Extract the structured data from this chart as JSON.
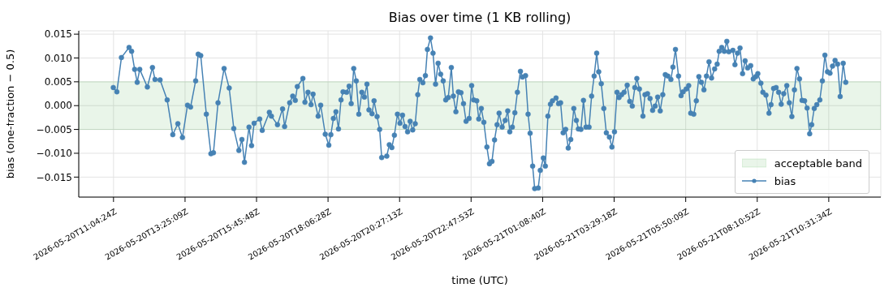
{
  "chart_data": {
    "type": "line",
    "title": "Bias over time (1 KB rolling)",
    "xlabel": "time (UTC)",
    "ylabel": "bias (one-fraction − 0.5)",
    "x": [
      "2026-05-20T11:04",
      "2026-05-20T11:11",
      "2026-05-20T11:20",
      "2026-05-20T11:35",
      "2026-05-20T11:40",
      "2026-05-20T11:46",
      "2026-05-20T11:51",
      "2026-05-20T11:56",
      "2026-05-20T12:11",
      "2026-05-20T12:21",
      "2026-05-20T12:26",
      "2026-05-20T12:36",
      "2026-05-20T12:50",
      "2026-05-20T13:01",
      "2026-05-20T13:11",
      "2026-05-20T13:20",
      "2026-05-20T13:30",
      "2026-05-20T13:36",
      "2026-05-20T13:46",
      "2026-05-20T13:51",
      "2026-05-20T13:56",
      "2026-05-20T14:07",
      "2026-05-20T14:16",
      "2026-05-20T14:21",
      "2026-05-20T14:30",
      "2026-05-20T14:42",
      "2026-05-20T14:52",
      "2026-05-20T15:01",
      "2026-05-20T15:11",
      "2026-05-20T15:17",
      "2026-05-20T15:22",
      "2026-05-20T15:31",
      "2026-05-20T15:36",
      "2026-05-20T15:41",
      "2026-05-20T15:52",
      "2026-05-20T15:57",
      "2026-05-20T16:11",
      "2026-05-20T16:15",
      "2026-05-20T16:27",
      "2026-05-20T16:37",
      "2026-05-20T16:41",
      "2026-05-20T16:51",
      "2026-05-20T16:57",
      "2026-05-20T17:02",
      "2026-05-20T17:06",
      "2026-05-20T17:17",
      "2026-05-20T17:21",
      "2026-05-20T17:27",
      "2026-05-20T17:33",
      "2026-05-20T17:37",
      "2026-05-20T17:47",
      "2026-05-20T17:52",
      "2026-05-20T18:01",
      "2026-05-20T18:08",
      "2026-05-20T18:12",
      "2026-05-20T18:17",
      "2026-05-20T18:22",
      "2026-05-20T18:27",
      "2026-05-20T18:32",
      "2026-05-20T18:36",
      "2026-05-20T18:43",
      "2026-05-20T18:48",
      "2026-05-20T18:52",
      "2026-05-20T18:57",
      "2026-05-20T19:02",
      "2026-05-20T19:07",
      "2026-05-20T19:13",
      "2026-05-20T19:18",
      "2026-05-20T19:23",
      "2026-05-20T19:27",
      "2026-05-20T19:33",
      "2026-05-20T19:37",
      "2026-05-20T19:43",
      "2026-05-20T19:48",
      "2026-05-20T19:52",
      "2026-05-20T20:02",
      "2026-05-20T20:07",
      "2026-05-20T20:12",
      "2026-05-20T20:17",
      "2026-05-20T20:23",
      "2026-05-20T20:28",
      "2026-05-20T20:33",
      "2026-05-20T20:38",
      "2026-05-20T20:43",
      "2026-05-20T20:48",
      "2026-05-20T20:53",
      "2026-05-20T20:58",
      "2026-05-20T21:03",
      "2026-05-20T21:07",
      "2026-05-20T21:13",
      "2026-05-20T21:18",
      "2026-05-20T21:22",
      "2026-05-20T21:28",
      "2026-05-20T21:33",
      "2026-05-20T21:38",
      "2026-05-20T21:43",
      "2026-05-20T21:48",
      "2026-05-20T21:53",
      "2026-05-20T21:58",
      "2026-05-20T22:03",
      "2026-05-20T22:09",
      "2026-05-20T22:13",
      "2026-05-20T22:18",
      "2026-05-20T22:23",
      "2026-05-20T22:28",
      "2026-05-20T22:33",
      "2026-05-20T22:38",
      "2026-05-20T22:44",
      "2026-05-20T22:49",
      "2026-05-20T22:53",
      "2026-05-20T22:59",
      "2026-05-20T23:03",
      "2026-05-20T23:08",
      "2026-05-20T23:13",
      "2026-05-20T23:19",
      "2026-05-20T23:24",
      "2026-05-20T23:29",
      "2026-05-20T23:34",
      "2026-05-20T23:39",
      "2026-05-20T23:43",
      "2026-05-20T23:49",
      "2026-05-20T23:55",
      "2026-05-21T00:00",
      "2026-05-21T00:04",
      "2026-05-21T00:09",
      "2026-05-21T00:14",
      "2026-05-21T00:19",
      "2026-05-21T00:25",
      "2026-05-21T00:29",
      "2026-05-21T00:35",
      "2026-05-21T00:40",
      "2026-05-21T00:44",
      "2026-05-21T00:49",
      "2026-05-21T00:53",
      "2026-05-21T01:00",
      "2026-05-21T01:04",
      "2026-05-21T01:10",
      "2026-05-21T01:14",
      "2026-05-21T01:19",
      "2026-05-21T01:24",
      "2026-05-21T01:28",
      "2026-05-21T01:35",
      "2026-05-21T01:40",
      "2026-05-21T01:44",
      "2026-05-21T01:49",
      "2026-05-21T01:54",
      "2026-05-21T01:59",
      "2026-05-21T02:04",
      "2026-05-21T02:10",
      "2026-05-21T02:15",
      "2026-05-21T02:19",
      "2026-05-21T02:24",
      "2026-05-21T02:29",
      "2026-05-21T02:34",
      "2026-05-21T02:40",
      "2026-05-21T02:45",
      "2026-05-21T02:50",
      "2026-05-21T02:55",
      "2026-05-21T02:59",
      "2026-05-21T03:04",
      "2026-05-21T03:09",
      "2026-05-21T03:14",
      "2026-05-21T03:20",
      "2026-05-21T03:25",
      "2026-05-21T03:30",
      "2026-05-21T03:35",
      "2026-05-21T03:39",
      "2026-05-21T03:44",
      "2026-05-21T03:49",
      "2026-05-21T03:55",
      "2026-05-21T04:00",
      "2026-05-21T04:05",
      "2026-05-21T04:10",
      "2026-05-21T04:14",
      "2026-05-21T04:19",
      "2026-05-21T04:26",
      "2026-05-21T04:30",
      "2026-05-21T04:35",
      "2026-05-21T04:40",
      "2026-05-21T04:45",
      "2026-05-21T04:50",
      "2026-05-21T04:55",
      "2026-05-21T05:00",
      "2026-05-21T05:05",
      "2026-05-21T05:10",
      "2026-05-21T05:15",
      "2026-05-21T05:21",
      "2026-05-21T05:25",
      "2026-05-21T05:30",
      "2026-05-21T05:36",
      "2026-05-21T05:41",
      "2026-05-21T05:45",
      "2026-05-21T05:51",
      "2026-05-21T05:56",
      "2026-05-21T06:00",
      "2026-05-21T06:06",
      "2026-05-21T06:11",
      "2026-05-21T06:16",
      "2026-05-21T06:21",
      "2026-05-21T06:26",
      "2026-05-21T06:31",
      "2026-05-21T06:36",
      "2026-05-21T06:41",
      "2026-05-21T06:47",
      "2026-05-21T06:52",
      "2026-05-21T06:56",
      "2026-05-21T07:01",
      "2026-05-21T07:06",
      "2026-05-21T07:11",
      "2026-05-21T07:15",
      "2026-05-21T07:23",
      "2026-05-21T07:27",
      "2026-05-21T07:32",
      "2026-05-21T07:37",
      "2026-05-21T07:42",
      "2026-05-21T07:47",
      "2026-05-21T07:52",
      "2026-05-21T07:58",
      "2026-05-21T08:03",
      "2026-05-21T08:08",
      "2026-05-21T08:12",
      "2026-05-21T08:18",
      "2026-05-21T08:22",
      "2026-05-21T08:28",
      "2026-05-21T08:34",
      "2026-05-21T08:38",
      "2026-05-21T08:43",
      "2026-05-21T08:48",
      "2026-05-21T08:53",
      "2026-05-21T08:58",
      "2026-05-21T09:03",
      "2026-05-21T09:09",
      "2026-05-21T09:14",
      "2026-05-21T09:19",
      "2026-05-21T09:24",
      "2026-05-21T09:29",
      "2026-05-21T09:34",
      "2026-05-21T09:39",
      "2026-05-21T09:44",
      "2026-05-21T09:49",
      "2026-05-21T09:54",
      "2026-05-21T09:58",
      "2026-05-21T10:03",
      "2026-05-21T10:08",
      "2026-05-21T10:14",
      "2026-05-21T10:19",
      "2026-05-21T10:24",
      "2026-05-21T10:29",
      "2026-05-21T10:34",
      "2026-05-21T10:39",
      "2026-05-21T10:44",
      "2026-05-21T10:49",
      "2026-05-21T10:54",
      "2026-05-21T11:00",
      "2026-05-21T11:05"
    ],
    "series": [
      {
        "name": "bias",
        "color": "#4682b4",
        "values": [
          0.0038,
          0.0029,
          0.0101,
          0.0122,
          0.0114,
          0.0076,
          0.0049,
          0.0076,
          0.0039,
          0.008,
          0.0055,
          0.0054,
          0.0012,
          -0.0061,
          -0.0038,
          -0.0067,
          0.0001,
          -0.0003,
          0.0052,
          0.0108,
          0.0105,
          -0.0018,
          -0.0101,
          -0.0099,
          0.0006,
          0.0078,
          0.0037,
          -0.0048,
          -0.0094,
          -0.0071,
          -0.0119,
          -0.0045,
          -0.0084,
          -0.0037,
          -0.0028,
          -0.0052,
          -0.0014,
          -0.0022,
          -0.004,
          -0.0007,
          -0.0044,
          0.0006,
          0.002,
          0.0011,
          0.004,
          0.0057,
          0.0007,
          0.0028,
          0.0002,
          0.0024,
          -0.0022,
          0.0001,
          -0.006,
          -0.0083,
          -0.0061,
          -0.0027,
          -0.0013,
          -0.0049,
          0.0012,
          0.0029,
          0.0028,
          0.0041,
          0.0004,
          0.0078,
          0.0052,
          -0.0018,
          0.0028,
          0.0018,
          0.0045,
          -0.0009,
          -0.0017,
          0.001,
          -0.0023,
          -0.005,
          -0.0109,
          -0.0106,
          -0.0082,
          -0.0088,
          -0.0062,
          -0.0018,
          -0.0037,
          -0.002,
          -0.0044,
          -0.0055,
          -0.0033,
          -0.0051,
          -0.0038,
          0.0023,
          0.0055,
          0.0048,
          0.0063,
          0.0118,
          0.0142,
          0.011,
          0.0045,
          0.0089,
          0.0066,
          0.0052,
          0.0012,
          0.0017,
          0.008,
          0.002,
          -0.0013,
          0.0029,
          0.0027,
          0.0004,
          -0.0033,
          -0.0027,
          0.0042,
          0.0012,
          0.001,
          -0.0028,
          -0.0006,
          -0.0035,
          -0.0087,
          -0.0122,
          -0.0117,
          -0.0072,
          -0.004,
          -0.0016,
          -0.0045,
          -0.0031,
          -0.0011,
          -0.0055,
          -0.0045,
          -0.0015,
          0.0028,
          0.0072,
          0.006,
          0.0063,
          -0.0018,
          -0.0058,
          -0.0127,
          -0.0174,
          -0.0173,
          -0.0136,
          -0.011,
          -0.0127,
          -0.0022,
          0.0003,
          0.001,
          0.0016,
          0.0004,
          0.0006,
          -0.0057,
          -0.005,
          -0.0089,
          -0.0071,
          -0.0006,
          -0.0031,
          -0.0049,
          -0.005,
          0.0011,
          -0.0045,
          -0.0045,
          0.002,
          0.0062,
          0.011,
          0.0071,
          0.0046,
          -0.0006,
          -0.0057,
          -0.0066,
          -0.0087,
          -0.0055,
          0.0028,
          0.0017,
          0.0023,
          0.0028,
          0.0043,
          0.0009,
          -0.0001,
          0.0038,
          0.0057,
          0.0035,
          -0.0022,
          0.0023,
          0.0025,
          0.0015,
          -0.001,
          -0.0001,
          0.0018,
          -0.0011,
          0.0023,
          0.0065,
          0.0062,
          0.0055,
          0.0081,
          0.0118,
          0.0062,
          0.0021,
          0.0029,
          0.0035,
          0.0042,
          -0.0016,
          -0.0018,
          0.001,
          0.0061,
          0.0049,
          0.0033,
          0.0062,
          0.0092,
          0.0058,
          0.0077,
          0.0087,
          0.0114,
          0.0122,
          0.0114,
          0.0135,
          0.0113,
          0.0116,
          0.0086,
          0.011,
          0.0121,
          0.0067,
          0.0094,
          0.0079,
          0.0084,
          0.0056,
          0.0061,
          0.0067,
          0.0047,
          0.0028,
          0.0022,
          -0.0016,
          0.0002,
          0.0036,
          0.0038,
          0.0028,
          0.0003,
          0.0025,
          0.0042,
          0.0006,
          -0.0023,
          0.0033,
          0.0078,
          0.0056,
          0.0011,
          0.001,
          -0.0005,
          -0.0059,
          -0.004,
          -0.0006,
          0.0002,
          0.0012,
          0.0052,
          0.0106,
          0.0071,
          0.0068,
          0.0083,
          0.0095,
          0.0087,
          0.0019,
          0.0089,
          0.0049
        ]
      }
    ],
    "xlim": [
      "2026-05-20T09:56",
      "2026-05-21T12:14"
    ],
    "xticks": [
      {
        "value": "2026-05-20T11:04:24",
        "label": "2026-05-20T11:04:24Z"
      },
      {
        "value": "2026-05-20T13:25:09",
        "label": "2026-05-20T13:25:09Z"
      },
      {
        "value": "2026-05-20T15:45:48",
        "label": "2026-05-20T15:45:48Z"
      },
      {
        "value": "2026-05-20T18:06:28",
        "label": "2026-05-20T18:06:28Z"
      },
      {
        "value": "2026-05-20T20:27:13",
        "label": "2026-05-20T20:27:13Z"
      },
      {
        "value": "2026-05-20T22:47:53",
        "label": "2026-05-20T22:47:53Z"
      },
      {
        "value": "2026-05-21T01:08:40",
        "label": "2026-05-21T01:08:40Z"
      },
      {
        "value": "2026-05-21T03:29:18",
        "label": "2026-05-21T03:29:18Z"
      },
      {
        "value": "2026-05-21T05:50:09",
        "label": "2026-05-21T05:50:09Z"
      },
      {
        "value": "2026-05-21T08:10:52",
        "label": "2026-05-21T08:10:52Z"
      },
      {
        "value": "2026-05-21T10:31:34",
        "label": "2026-05-21T10:31:34Z"
      }
    ],
    "ylim": [
      -0.0192,
      0.0157
    ],
    "yticks": [
      {
        "value": -0.015,
        "label": "−0.015"
      },
      {
        "value": -0.01,
        "label": "−0.010"
      },
      {
        "value": -0.005,
        "label": "−0.005"
      },
      {
        "value": 0,
        "label": "0.000"
      },
      {
        "value": 0.005,
        "label": "0.005"
      },
      {
        "value": 0.01,
        "label": "0.010"
      },
      0.015
    ],
    "bands": [
      {
        "axis": "y",
        "from": -0.005,
        "to": 0.005,
        "label": "acceptable band",
        "color": "#2ca02c"
      }
    ],
    "grid": true,
    "legend": "bottom right",
    "marker": "circle",
    "line_style": "solid"
  }
}
